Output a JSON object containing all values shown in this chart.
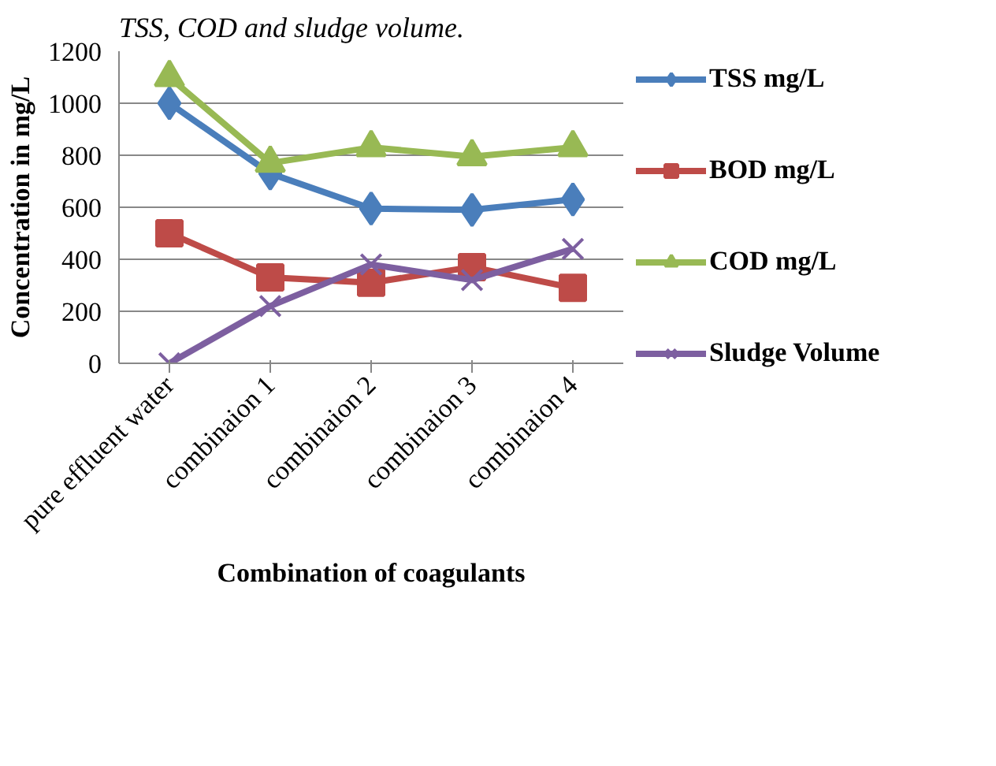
{
  "chart_data": {
    "type": "line",
    "xlabel": "Combination of coagulants",
    "ylabel": "Concentration in mg/L",
    "annotations": [
      "TSS, COD and sludge volume."
    ],
    "categories": [
      "pure effluent water",
      "combinaion 1",
      "combinaion 2",
      "combinaion 3",
      "combinaion 4"
    ],
    "series": [
      {
        "name": "TSS mg/L",
        "color": "#4a7ebb",
        "marker": "diamond",
        "values": [
          1000,
          730,
          595,
          590,
          630
        ]
      },
      {
        "name": "BOD mg/L",
        "color": "#be4b48",
        "marker": "square",
        "values": [
          500,
          330,
          310,
          370,
          290
        ]
      },
      {
        "name": "COD mg/L",
        "color": "#98b954",
        "marker": "triangle",
        "values": [
          1100,
          770,
          830,
          795,
          830
        ]
      },
      {
        "name": "Sludge Volume",
        "color": "#7d5fa0",
        "marker": "cross",
        "values": [
          0,
          220,
          380,
          320,
          440
        ]
      }
    ],
    "ylim": [
      0,
      1200
    ],
    "yticks": [
      0,
      200,
      400,
      600,
      800,
      1000,
      1200
    ],
    "grid": "y",
    "legend": "right"
  }
}
